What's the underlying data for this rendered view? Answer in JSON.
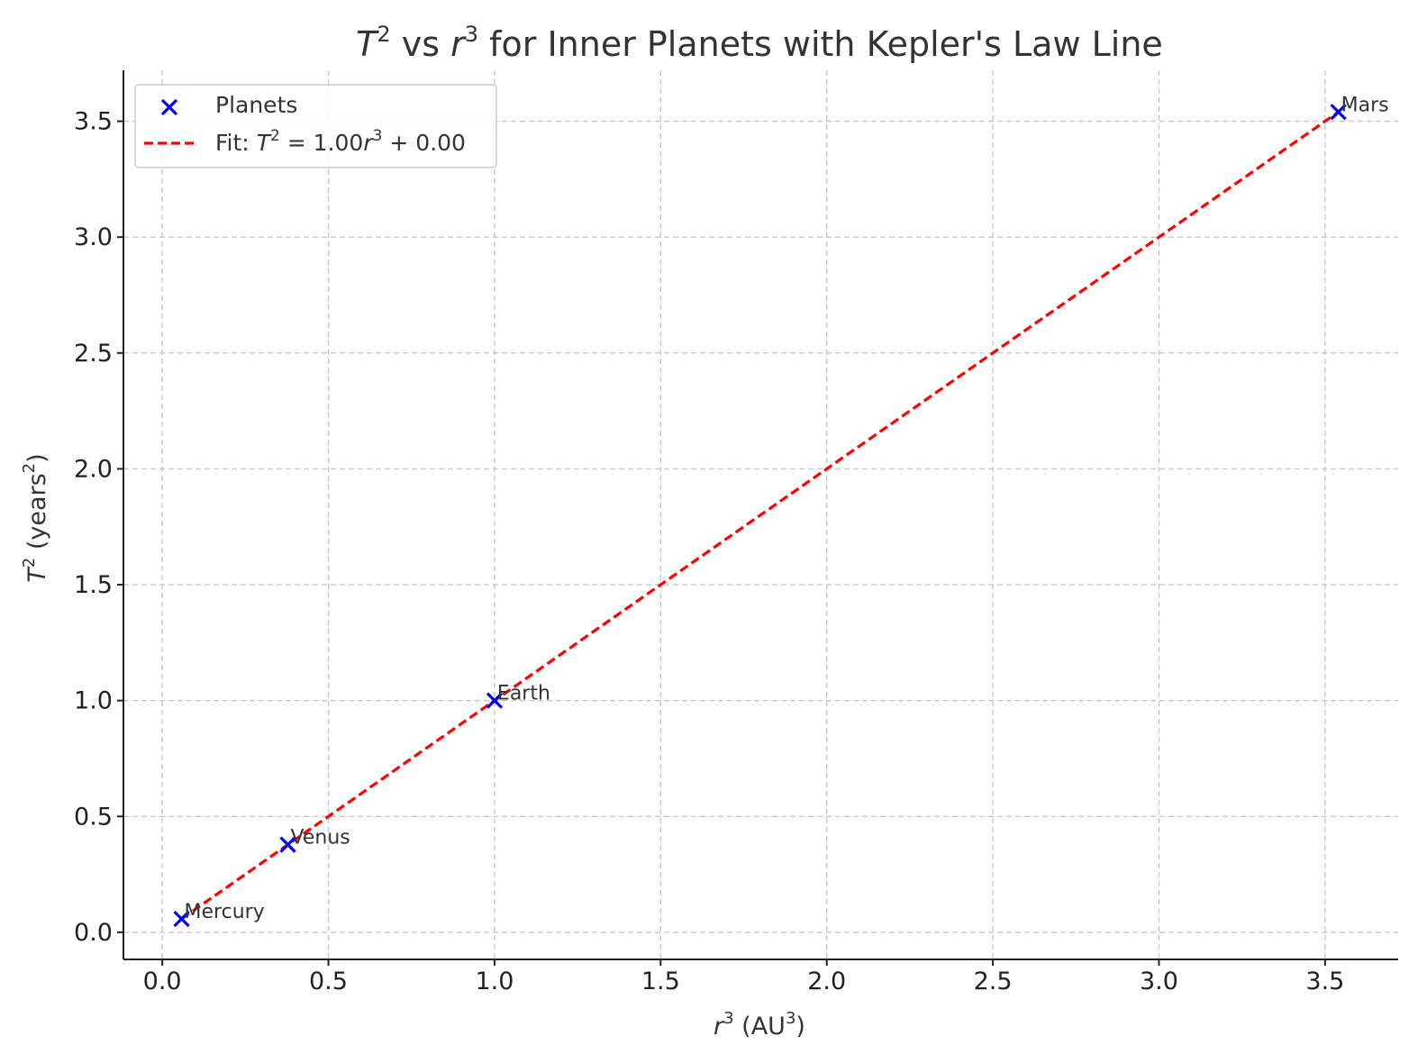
{
  "chart_data": {
    "type": "scatter",
    "title_parts": {
      "T": "T",
      "sup1": "2",
      "vs": " vs ",
      "r": "r",
      "sup2": "3",
      "rest": " for Inner Planets with Kepler's Law Line"
    },
    "xlabel_parts": {
      "r": "r",
      "sup": "3",
      "unit_open": " (AU",
      "unit_sup": "3",
      "unit_close": ")"
    },
    "ylabel_parts": {
      "T": "T",
      "sup": "2",
      "unit_open": " (years",
      "unit_sup": "2",
      "unit_close": ")"
    },
    "xlim": [
      -0.117,
      3.72
    ],
    "ylim": [
      -0.117,
      3.72
    ],
    "xticks": [
      0.0,
      0.5,
      1.0,
      1.5,
      2.0,
      2.5,
      3.0,
      3.5
    ],
    "xtick_labels": [
      "0.0",
      "0.5",
      "1.0",
      "1.5",
      "2.0",
      "2.5",
      "3.0",
      "3.5"
    ],
    "yticks": [
      0.0,
      0.5,
      1.0,
      1.5,
      2.0,
      2.5,
      3.0,
      3.5
    ],
    "ytick_labels": [
      "0.0",
      "0.5",
      "1.0",
      "1.5",
      "2.0",
      "2.5",
      "3.0",
      "3.5"
    ],
    "grid": true,
    "legend_position": "top-left",
    "series": [
      {
        "name": "Planets",
        "kind": "scatter",
        "marker": "x",
        "color": "#0000ff",
        "points": [
          {
            "label": "Mercury",
            "x": 0.058,
            "y": 0.058
          },
          {
            "label": "Venus",
            "x": 0.378,
            "y": 0.378
          },
          {
            "label": "Earth",
            "x": 1.0,
            "y": 1.0
          },
          {
            "label": "Mars",
            "x": 3.54,
            "y": 3.54
          }
        ]
      },
      {
        "name_parts": {
          "prefix": "Fit: ",
          "T": "T",
          "sup1": "2",
          "eq": " = 1.00",
          "r": "r",
          "sup2": "3",
          "tail": " + 0.00"
        },
        "kind": "line",
        "style": "dashed",
        "color": "#ff0000",
        "slope": 1.0,
        "intercept": 0.0,
        "x_range": [
          0.058,
          3.54
        ]
      }
    ]
  }
}
